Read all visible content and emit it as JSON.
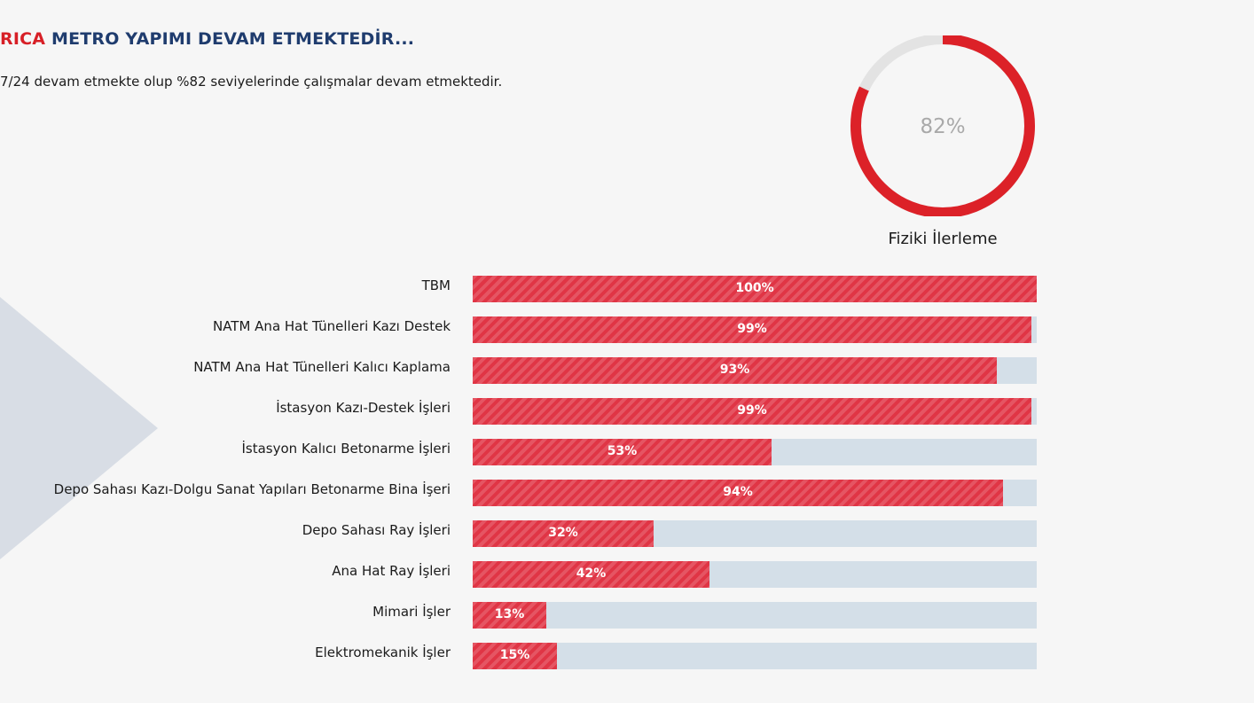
{
  "header": {
    "title_accent": "RICA",
    "title_main": "METRO YAPIMI DEVAM ETMEKTEDİR...",
    "subtitle": "7/24 devam etmekte olup %82 seviyelerinde çalışmalar devam etmektedir."
  },
  "progress_ring": {
    "value": 82,
    "value_label": "82%",
    "caption": "Fiziki İlerleme"
  },
  "colors": {
    "accent": "#d71f26",
    "title_blue": "#1f3c6e",
    "bar_fill": "#e03545",
    "bar_track": "#d4dfe8",
    "ring_track": "#e3e3e3"
  },
  "chart_data": {
    "type": "bar",
    "orientation": "horizontal",
    "title": "Fiziki İlerleme",
    "xlabel": "",
    "ylabel": "",
    "xlim": [
      0,
      100
    ],
    "categories": [
      "TBM",
      "NATM Ana Hat Tünelleri Kazı Destek",
      "NATM Ana Hat Tünelleri Kalıcı Kaplama",
      "İstasyon Kazı-Destek İşleri",
      "İstasyon Kalıcı Betonarme İşleri",
      "Depo Sahası Kazı-Dolgu Sanat Yapıları Betonarme Bina İşeri",
      "Depo Sahası Ray İşleri",
      "Ana Hat Ray İşleri",
      "Mimari İşler",
      "Elektromekanik İşler"
    ],
    "values": [
      100,
      99,
      93,
      99,
      53,
      94,
      32,
      42,
      13,
      15
    ],
    "value_labels": [
      "100%",
      "99%",
      "93%",
      "99%",
      "53%",
      "94%",
      "32%",
      "42%",
      "13%",
      "15%"
    ]
  }
}
